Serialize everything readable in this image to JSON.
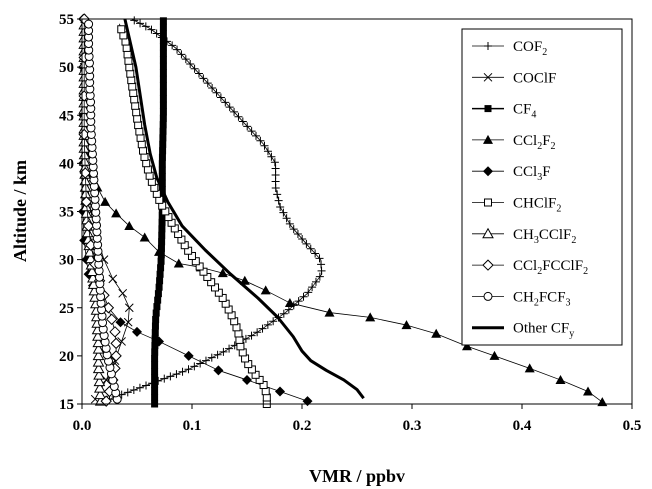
{
  "chart_data": {
    "type": "line",
    "xlabel": "VMR / ppbv",
    "ylabel": "Altitude / km",
    "xlim": [
      0,
      0.5
    ],
    "ylim": [
      15,
      55
    ],
    "xticks": [
      0.0,
      0.1,
      0.2,
      0.3,
      0.4,
      0.5
    ],
    "xtick_labels": [
      "0.0",
      "0.1",
      "0.2",
      "0.3",
      "0.4",
      "0.5"
    ],
    "yticks": [
      15,
      20,
      25,
      30,
      35,
      40,
      45,
      50,
      55
    ],
    "ytick_labels": [
      "15",
      "20",
      "25",
      "30",
      "35",
      "40",
      "45",
      "50",
      "55"
    ],
    "grid": false,
    "legend_position": "right",
    "series": [
      {
        "name": "COF2",
        "label_parts": [
          [
            "COF",
            ""
          ],
          [
            "2",
            "sub"
          ]
        ],
        "marker": "plus",
        "color": "#000000",
        "line_width": 0.8,
        "dense": true,
        "points": [
          [
            0.025,
            15.5
          ],
          [
            0.06,
            17
          ],
          [
            0.095,
            18.5
          ],
          [
            0.13,
            20.5
          ],
          [
            0.16,
            22.5
          ],
          [
            0.185,
            24.5
          ],
          [
            0.205,
            26.5
          ],
          [
            0.218,
            28.5
          ],
          [
            0.217,
            30
          ],
          [
            0.205,
            31.5
          ],
          [
            0.19,
            33.5
          ],
          [
            0.18,
            35.5
          ],
          [
            0.176,
            37.5
          ],
          [
            0.176,
            40
          ],
          [
            0.165,
            42
          ],
          [
            0.145,
            44.5
          ],
          [
            0.125,
            47
          ],
          [
            0.105,
            49.5
          ],
          [
            0.085,
            52
          ],
          [
            0.062,
            54
          ],
          [
            0.045,
            55
          ]
        ]
      },
      {
        "name": "COClF",
        "label_parts": [
          [
            "COClF",
            ""
          ]
        ],
        "marker": "x",
        "color": "#000000",
        "line_width": 0.8,
        "dense": false,
        "points": [
          [
            0.012,
            15.5
          ],
          [
            0.022,
            17.5
          ],
          [
            0.03,
            19.5
          ],
          [
            0.036,
            21.5
          ],
          [
            0.042,
            23.5
          ],
          [
            0.043,
            25
          ],
          [
            0.037,
            26.5
          ],
          [
            0.028,
            28
          ],
          [
            0.02,
            30
          ],
          [
            0.013,
            32.5
          ],
          [
            0.008,
            35
          ],
          [
            0.005,
            38
          ],
          [
            0.004,
            42
          ],
          [
            0.003,
            46
          ],
          [
            0.002,
            50
          ],
          [
            0.002,
            54.5
          ]
        ]
      },
      {
        "name": "CF4",
        "label_parts": [
          [
            "CF",
            ""
          ],
          [
            "4",
            "sub"
          ]
        ],
        "marker": "square-filled",
        "color": "#000000",
        "line_width": 1.5,
        "dense": true,
        "points": [
          [
            0.066,
            15
          ],
          [
            0.066,
            20
          ],
          [
            0.067,
            24
          ],
          [
            0.07,
            27
          ],
          [
            0.072,
            30
          ],
          [
            0.073,
            35
          ],
          [
            0.073,
            40
          ],
          [
            0.074,
            45
          ],
          [
            0.074,
            50
          ],
          [
            0.074,
            55
          ]
        ]
      },
      {
        "name": "CCl2F2",
        "label_parts": [
          [
            "CCl",
            ""
          ],
          [
            "2",
            "sub"
          ],
          [
            "F",
            ""
          ],
          [
            "2",
            "sub"
          ]
        ],
        "marker": "triangle-filled",
        "color": "#000000",
        "line_width": 0.8,
        "dense": false,
        "points": [
          [
            0.473,
            15.2
          ],
          [
            0.46,
            16.3
          ],
          [
            0.435,
            17.5
          ],
          [
            0.407,
            18.7
          ],
          [
            0.375,
            20
          ],
          [
            0.35,
            21
          ],
          [
            0.322,
            22.3
          ],
          [
            0.295,
            23.2
          ],
          [
            0.262,
            24
          ],
          [
            0.225,
            24.5
          ],
          [
            0.189,
            25.5
          ],
          [
            0.167,
            26.8
          ],
          [
            0.148,
            27.8
          ],
          [
            0.128,
            28.6
          ],
          [
            0.108,
            29.2
          ],
          [
            0.088,
            29.6
          ],
          [
            0.07,
            30.8
          ],
          [
            0.057,
            32.3
          ],
          [
            0.043,
            33.5
          ],
          [
            0.031,
            34.8
          ],
          [
            0.021,
            36
          ],
          [
            0.014,
            37.5
          ],
          [
            0.01,
            39
          ],
          [
            0.007,
            41
          ],
          [
            0.005,
            43.5
          ],
          [
            0.004,
            47
          ],
          [
            0.003,
            51
          ],
          [
            0.003,
            55
          ]
        ]
      },
      {
        "name": "CCl3F",
        "label_parts": [
          [
            "CCl",
            ""
          ],
          [
            "3",
            "sub"
          ],
          [
            "F",
            ""
          ]
        ],
        "marker": "diamond-filled",
        "color": "#000000",
        "line_width": 0.8,
        "dense": false,
        "points": [
          [
            0.205,
            15.3
          ],
          [
            0.18,
            16.3
          ],
          [
            0.15,
            17.5
          ],
          [
            0.124,
            18.5
          ],
          [
            0.097,
            20
          ],
          [
            0.07,
            21.5
          ],
          [
            0.05,
            22.5
          ],
          [
            0.035,
            23.5
          ],
          [
            0.024,
            25
          ],
          [
            0.016,
            26
          ],
          [
            0.01,
            27.3
          ],
          [
            0.006,
            28.5
          ],
          [
            0.004,
            30
          ],
          [
            0.002,
            32
          ],
          [
            0.001,
            35
          ],
          [
            0.001,
            40
          ],
          [
            0.001,
            45
          ],
          [
            0.001,
            50
          ],
          [
            0.001,
            55
          ]
        ]
      },
      {
        "name": "CHClF2",
        "label_parts": [
          [
            "CHClF",
            ""
          ],
          [
            "2",
            "sub"
          ]
        ],
        "marker": "square-open",
        "color": "#000000",
        "line_width": 0.8,
        "dense": true,
        "points": [
          [
            0.168,
            15
          ],
          [
            0.168,
            16
          ],
          [
            0.165,
            17
          ],
          [
            0.158,
            18
          ],
          [
            0.149,
            19.5
          ],
          [
            0.144,
            21
          ],
          [
            0.142,
            22.5
          ],
          [
            0.137,
            24
          ],
          [
            0.128,
            26
          ],
          [
            0.112,
            28.5
          ],
          [
            0.096,
            31
          ],
          [
            0.083,
            33.5
          ],
          [
            0.071,
            36
          ],
          [
            0.062,
            38.5
          ],
          [
            0.056,
            41
          ],
          [
            0.051,
            44
          ],
          [
            0.047,
            47
          ],
          [
            0.043,
            50
          ],
          [
            0.04,
            52.5
          ],
          [
            0.034,
            54.5
          ]
        ]
      },
      {
        "name": "CH3CClF2",
        "label_parts": [
          [
            "CH",
            ""
          ],
          [
            "3",
            "sub"
          ],
          [
            "CClF",
            ""
          ],
          [
            "2",
            "sub"
          ]
        ],
        "marker": "triangle-open",
        "color": "#000000",
        "line_width": 0.8,
        "dense": true,
        "points": [
          [
            0.017,
            15.3
          ],
          [
            0.016,
            17
          ],
          [
            0.015,
            19
          ],
          [
            0.015,
            21
          ],
          [
            0.014,
            23
          ],
          [
            0.013,
            25
          ],
          [
            0.011,
            27
          ],
          [
            0.009,
            29
          ],
          [
            0.007,
            31
          ],
          [
            0.005,
            33
          ],
          [
            0.004,
            35
          ],
          [
            0.003,
            38
          ],
          [
            0.002,
            42
          ],
          [
            0.002,
            46
          ],
          [
            0.002,
            50
          ],
          [
            0.002,
            55
          ]
        ]
      },
      {
        "name": "CCl2FCClF2",
        "label_parts": [
          [
            "CCl",
            ""
          ],
          [
            "2",
            "sub"
          ],
          [
            "FCClF",
            ""
          ],
          [
            "2",
            "sub"
          ]
        ],
        "marker": "diamond-open",
        "color": "#000000",
        "line_width": 0.8,
        "dense": false,
        "points": [
          [
            0.022,
            15.3
          ],
          [
            0.025,
            16.3
          ],
          [
            0.028,
            17.5
          ],
          [
            0.03,
            18.7
          ],
          [
            0.031,
            20
          ],
          [
            0.031,
            21.3
          ],
          [
            0.03,
            22.5
          ],
          [
            0.027,
            23.8
          ],
          [
            0.024,
            25
          ],
          [
            0.02,
            26.3
          ],
          [
            0.016,
            27.8
          ],
          [
            0.012,
            29.5
          ],
          [
            0.008,
            31.5
          ],
          [
            0.006,
            33.5
          ],
          [
            0.004,
            36
          ],
          [
            0.003,
            39
          ],
          [
            0.002,
            43
          ],
          [
            0.002,
            47
          ],
          [
            0.002,
            51
          ],
          [
            0.002,
            55
          ]
        ]
      },
      {
        "name": "CH2FCF3",
        "label_parts": [
          [
            "CH",
            ""
          ],
          [
            "2",
            "sub"
          ],
          [
            "FCF",
            ""
          ],
          [
            "3",
            "sub"
          ]
        ],
        "marker": "circle-open",
        "color": "#000000",
        "line_width": 0.8,
        "dense": true,
        "points": [
          [
            0.032,
            15.5
          ],
          [
            0.029,
            17
          ],
          [
            0.026,
            18.5
          ],
          [
            0.023,
            20
          ],
          [
            0.021,
            21.5
          ],
          [
            0.019,
            23
          ],
          [
            0.018,
            24.5
          ],
          [
            0.017,
            26
          ],
          [
            0.016,
            28
          ],
          [
            0.015,
            30
          ],
          [
            0.014,
            32
          ],
          [
            0.013,
            34
          ],
          [
            0.012,
            36
          ],
          [
            0.011,
            38
          ],
          [
            0.01,
            40
          ],
          [
            0.009,
            42
          ],
          [
            0.008,
            44
          ],
          [
            0.008,
            46
          ],
          [
            0.007,
            48
          ],
          [
            0.007,
            50
          ],
          [
            0.006,
            52
          ],
          [
            0.006,
            54
          ],
          [
            0.006,
            55
          ]
        ]
      },
      {
        "name": "Other CFy",
        "label_parts": [
          [
            "Other CF",
            ""
          ],
          [
            "y",
            "sub"
          ]
        ],
        "marker": "none",
        "color": "#000000",
        "line_width": 3,
        "dense": false,
        "points": [
          [
            0.256,
            15.6
          ],
          [
            0.25,
            16.5
          ],
          [
            0.238,
            17.5
          ],
          [
            0.222,
            18.5
          ],
          [
            0.208,
            19.5
          ],
          [
            0.2,
            20.5
          ],
          [
            0.192,
            22
          ],
          [
            0.178,
            24
          ],
          [
            0.16,
            26
          ],
          [
            0.135,
            28.5
          ],
          [
            0.112,
            31
          ],
          [
            0.091,
            33.5
          ],
          [
            0.078,
            36
          ],
          [
            0.068,
            38.5
          ],
          [
            0.062,
            41
          ],
          [
            0.057,
            44
          ],
          [
            0.053,
            47
          ],
          [
            0.049,
            50
          ],
          [
            0.045,
            52
          ],
          [
            0.041,
            54
          ],
          [
            0.039,
            55
          ]
        ]
      }
    ]
  }
}
